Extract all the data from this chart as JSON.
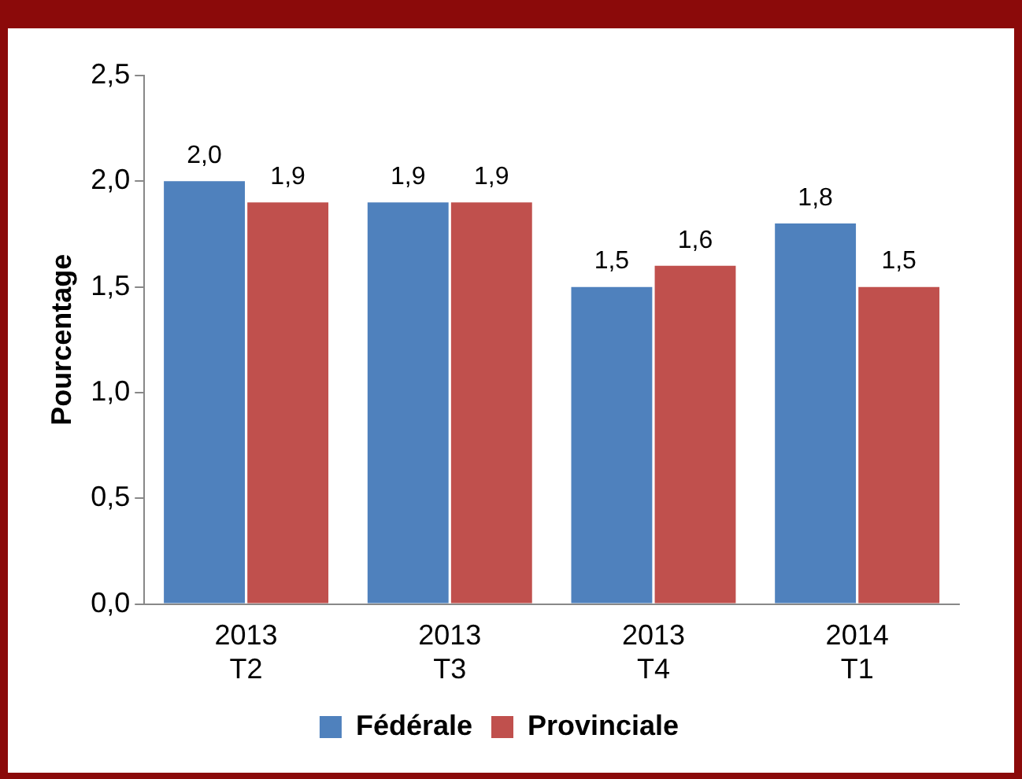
{
  "chart_data": {
    "type": "bar",
    "ylabel": "Pourcentage",
    "categories": [
      "2013 T2",
      "2013 T3",
      "2013 T4",
      "2014 T1"
    ],
    "series": [
      {
        "name": "Fédérale",
        "color": "#4f81bd",
        "values": [
          2.0,
          1.9,
          1.5,
          1.8
        ],
        "value_labels": [
          "2,0",
          "1,9",
          "1,5",
          "1,8"
        ]
      },
      {
        "name": "Provinciale",
        "color": "#c0504d",
        "values": [
          1.9,
          1.9,
          1.6,
          1.5
        ],
        "value_labels": [
          "1,9",
          "1,9",
          "1,6",
          "1,5"
        ]
      }
    ],
    "ylim": [
      0,
      2.5
    ],
    "yticks": [
      {
        "value": 0,
        "label": "0,0"
      },
      {
        "value": 0.5,
        "label": "0,5"
      },
      {
        "value": 1,
        "label": "1,0"
      },
      {
        "value": 1.5,
        "label": "1,5"
      },
      {
        "value": 2,
        "label": "2,0"
      },
      {
        "value": 2.5,
        "label": "2,5"
      }
    ],
    "grid": false,
    "legend": "bottom"
  }
}
